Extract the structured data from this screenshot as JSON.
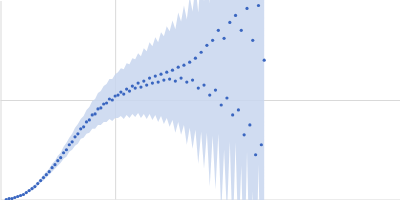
{
  "chart_data": {
    "type": "scatter",
    "x": [
      0.05,
      0.075,
      0.1,
      0.125,
      0.15,
      0.175,
      0.2,
      0.225,
      0.25,
      0.275,
      0.3,
      0.325,
      0.35,
      0.375,
      0.4,
      0.425,
      0.45,
      0.475,
      0.5,
      0.525,
      0.55,
      0.575,
      0.6,
      0.625,
      0.65,
      0.675,
      0.7,
      0.725,
      0.75,
      0.775,
      0.8,
      0.825,
      0.85,
      0.875,
      0.9,
      0.925,
      0.95,
      0.975,
      1.0,
      1.025,
      1.05,
      1.075,
      1.1,
      1.125,
      1.15,
      1.175,
      1.2,
      1.225,
      1.25,
      1.275,
      1.3,
      1.325,
      1.35,
      1.375,
      1.4,
      1.425,
      1.45,
      1.475,
      1.5,
      1.525,
      1.55,
      1.575,
      1.6,
      1.625,
      1.65,
      1.675,
      1.7,
      1.725,
      1.75,
      1.775,
      1.8,
      1.825,
      1.85,
      1.875,
      1.9,
      1.925,
      1.95,
      1.975,
      2.0,
      2.025,
      2.05,
      2.075,
      2.1,
      2.125,
      2.15,
      2.175,
      2.2,
      2.225,
      2.25,
      2.275,
      2.3
    ],
    "values": [
      0.0,
      0.01,
      0.01,
      0.02,
      0.03,
      0.04,
      0.05,
      0.07,
      0.09,
      0.11,
      0.13,
      0.16,
      0.19,
      0.22,
      0.25,
      0.28,
      0.32,
      0.35,
      0.39,
      0.42,
      0.47,
      0.5,
      0.55,
      0.58,
      0.63,
      0.66,
      0.71,
      0.73,
      0.78,
      0.8,
      0.85,
      0.86,
      0.91,
      0.92,
      0.96,
      0.97,
      1.01,
      1.0,
      1.04,
      1.05,
      1.08,
      1.06,
      1.11,
      1.09,
      1.14,
      1.12,
      1.17,
      1.13,
      1.19,
      1.15,
      1.22,
      1.17,
      1.24,
      1.18,
      1.26,
      1.2,
      1.28,
      1.21,
      1.3,
      1.19,
      1.33,
      1.22,
      1.35,
      1.18,
      1.38,
      1.2,
      1.42,
      1.12,
      1.48,
      1.15,
      1.55,
      1.05,
      1.6,
      1.1,
      1.7,
      0.95,
      1.62,
      1.02,
      1.78,
      0.85,
      1.85,
      0.9,
      1.7,
      0.65,
      1.92,
      0.75,
      1.6,
      0.45,
      1.95,
      0.55,
      1.4
    ],
    "errors": [
      0.0,
      0.0,
      0.01,
      0.01,
      0.01,
      0.01,
      0.01,
      0.01,
      0.01,
      0.02,
      0.02,
      0.02,
      0.02,
      0.03,
      0.03,
      0.03,
      0.04,
      0.04,
      0.05,
      0.05,
      0.06,
      0.07,
      0.07,
      0.08,
      0.09,
      0.1,
      0.1,
      0.11,
      0.12,
      0.13,
      0.14,
      0.15,
      0.16,
      0.17,
      0.18,
      0.19,
      0.2,
      0.21,
      0.22,
      0.23,
      0.24,
      0.25,
      0.26,
      0.27,
      0.28,
      0.29,
      0.3,
      0.31,
      0.33,
      0.34,
      0.36,
      0.37,
      0.39,
      0.4,
      0.42,
      0.44,
      0.46,
      0.48,
      0.5,
      0.52,
      0.55,
      0.57,
      0.6,
      0.63,
      0.66,
      0.69,
      0.72,
      0.76,
      0.8,
      0.84,
      0.88,
      0.92,
      0.96,
      1.0,
      1.04,
      1.08,
      1.12,
      1.16,
      1.2,
      1.24,
      1.28,
      1.32,
      1.36,
      1.4,
      1.44,
      1.48,
      1.52,
      1.56,
      1.6,
      1.64,
      1.68
    ],
    "color": "#3a66c0",
    "marker": "circle",
    "xlim": [
      0,
      3.48
    ],
    "ylim": [
      0,
      2
    ],
    "xticks": [
      1
    ],
    "yticks": [
      1
    ],
    "grid": true,
    "tick_labels": false
  }
}
